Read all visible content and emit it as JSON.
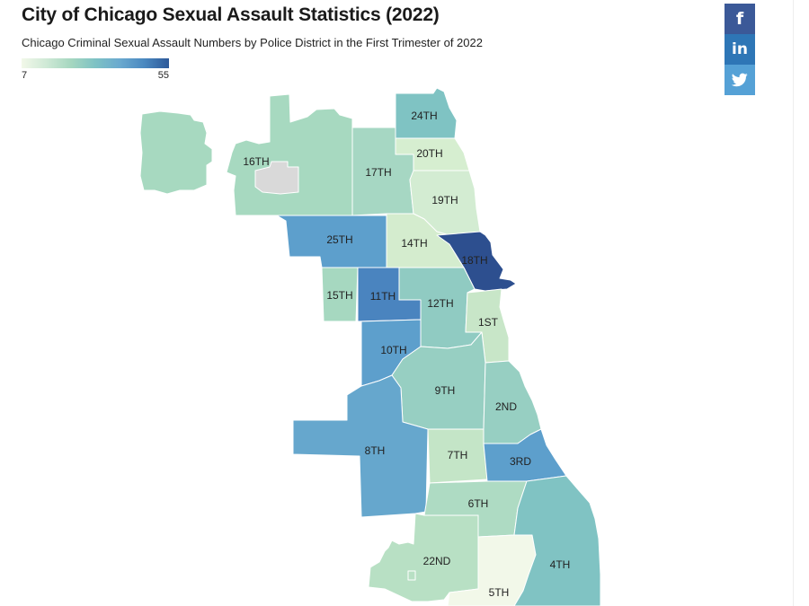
{
  "header": {
    "title": "City of Chicago Sexual Assault Statistics (2022)",
    "subtitle": "Chicago Criminal Sexual Assault Numbers by Police District in the First Trimester of 2022"
  },
  "legend": {
    "min_label": "7",
    "max_label": "55",
    "color_low": "#f2f8e9",
    "color_high": "#2d5999"
  },
  "share": {
    "facebook_label": "f",
    "linkedin_label": "in",
    "twitter_icon": "twitter-bird-icon",
    "colors": {
      "facebook": "#3b5998",
      "linkedin": "#2e76b6",
      "twitter": "#55a1d6"
    }
  },
  "map": {
    "no_data_color": "#d9d9d9",
    "districts": [
      {
        "id": "north-northwest",
        "label": "",
        "color": "#a7d9c0"
      },
      {
        "id": "16",
        "label": "16TH",
        "color": "#a7d9c0"
      },
      {
        "id": "24",
        "label": "24TH",
        "color": "#7fc3c3"
      },
      {
        "id": "17",
        "label": "17TH",
        "color": "#a6d7c3"
      },
      {
        "id": "20",
        "label": "20TH",
        "color": "#d6eed0"
      },
      {
        "id": "19",
        "label": "19TH",
        "color": "#d3ecd2"
      },
      {
        "id": "25",
        "label": "25TH",
        "color": "#5d9fcc"
      },
      {
        "id": "14",
        "label": "14TH",
        "color": "#d4ecce"
      },
      {
        "id": "18",
        "label": "18TH",
        "color": "#2d4f8f"
      },
      {
        "id": "15",
        "label": "15TH",
        "color": "#a6d8c0"
      },
      {
        "id": "11",
        "label": "11TH",
        "color": "#4a84bf"
      },
      {
        "id": "12",
        "label": "12TH",
        "color": "#90cbc2"
      },
      {
        "id": "1",
        "label": "1ST",
        "color": "#c8e6c8"
      },
      {
        "id": "10",
        "label": "10TH",
        "color": "#5d9fcc"
      },
      {
        "id": "9",
        "label": "9TH",
        "color": "#97cfc2"
      },
      {
        "id": "2",
        "label": "2ND",
        "color": "#97cfc2"
      },
      {
        "id": "8",
        "label": "8TH",
        "color": "#66a7cd"
      },
      {
        "id": "7",
        "label": "7TH",
        "color": "#c4e5c7"
      },
      {
        "id": "3",
        "label": "3RD",
        "color": "#5d9fcc"
      },
      {
        "id": "6",
        "label": "6TH",
        "color": "#aedbc3"
      },
      {
        "id": "22",
        "label": "22ND",
        "color": "#b8e0c4"
      },
      {
        "id": "5",
        "label": "5TH",
        "color": "#f2f8e9"
      },
      {
        "id": "4",
        "label": "4TH",
        "color": "#80c3c3"
      }
    ]
  }
}
